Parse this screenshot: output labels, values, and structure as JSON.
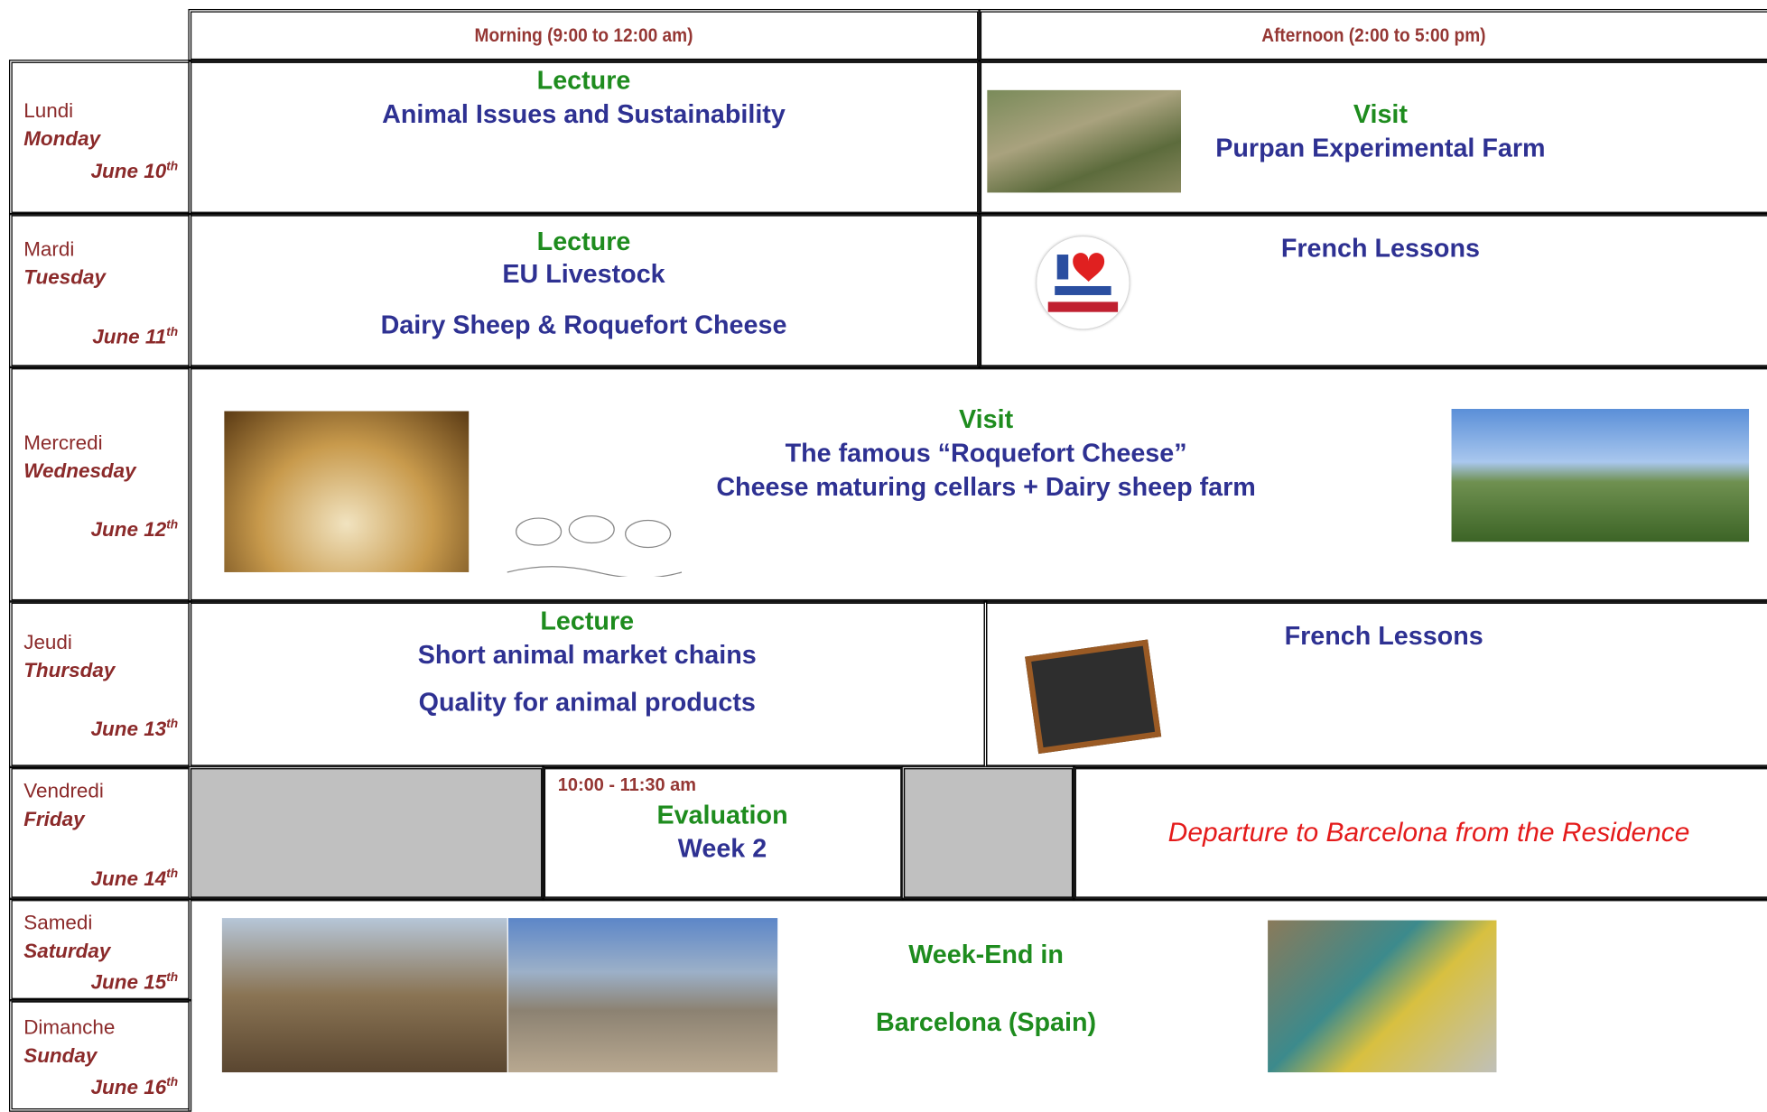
{
  "header": {
    "morning": "Morning (9:00 to 12:00 am)",
    "afternoon": "Afternoon (2:00 to 5:00 pm)"
  },
  "days": [
    {
      "fr": "Lundi",
      "en": "Monday",
      "date": "June 10",
      "suffix": "th"
    },
    {
      "fr": "Mardi",
      "en": "Tuesday",
      "date": "June 11",
      "suffix": "th"
    },
    {
      "fr": "Mercredi",
      "en": "Wednesday",
      "date": "June 12",
      "suffix": "th"
    },
    {
      "fr": "Jeudi",
      "en": "Thursday",
      "date": "June 13",
      "suffix": "th"
    },
    {
      "fr": "Vendredi",
      "en": "Friday",
      "date": "June 14",
      "suffix": "th"
    },
    {
      "fr": "Samedi",
      "en": "Saturday",
      "date": "June 15",
      "suffix": "th"
    },
    {
      "fr": "Dimanche",
      "en": "Sunday",
      "date": "June 16",
      "suffix": "th"
    }
  ],
  "schedule": {
    "monday": {
      "morning": {
        "type": "Lecture",
        "lines": [
          "Animal Issues and Sustainability"
        ]
      },
      "afternoon": {
        "type": "Visit",
        "lines": [
          "Purpan Experimental Farm"
        ]
      }
    },
    "tuesday": {
      "morning": {
        "type": "Lecture",
        "lines": [
          "EU Livestock",
          "Dairy Sheep & Roquefort Cheese"
        ]
      },
      "afternoon": {
        "lines": [
          "French Lessons"
        ]
      }
    },
    "wednesday": {
      "allday": {
        "type": "Visit",
        "lines": [
          "The famous “Roquefort Cheese”",
          "Cheese maturing cellars + Dairy sheep farm"
        ]
      }
    },
    "thursday": {
      "morning": {
        "type": "Lecture",
        "lines": [
          "Short animal market chains",
          "Quality for animal products"
        ]
      },
      "afternoon": {
        "lines": [
          "French Lessons"
        ]
      }
    },
    "friday": {
      "morning": {
        "time": "10:00 - 11:30 am",
        "lines": [
          "Evaluation",
          "Week 2"
        ]
      },
      "afternoon": {
        "lines": [
          "Departure to Barcelona from the Residence"
        ]
      }
    },
    "weekend": {
      "lines": [
        "Week-End in",
        "Barcelona (Spain)"
      ]
    }
  }
}
